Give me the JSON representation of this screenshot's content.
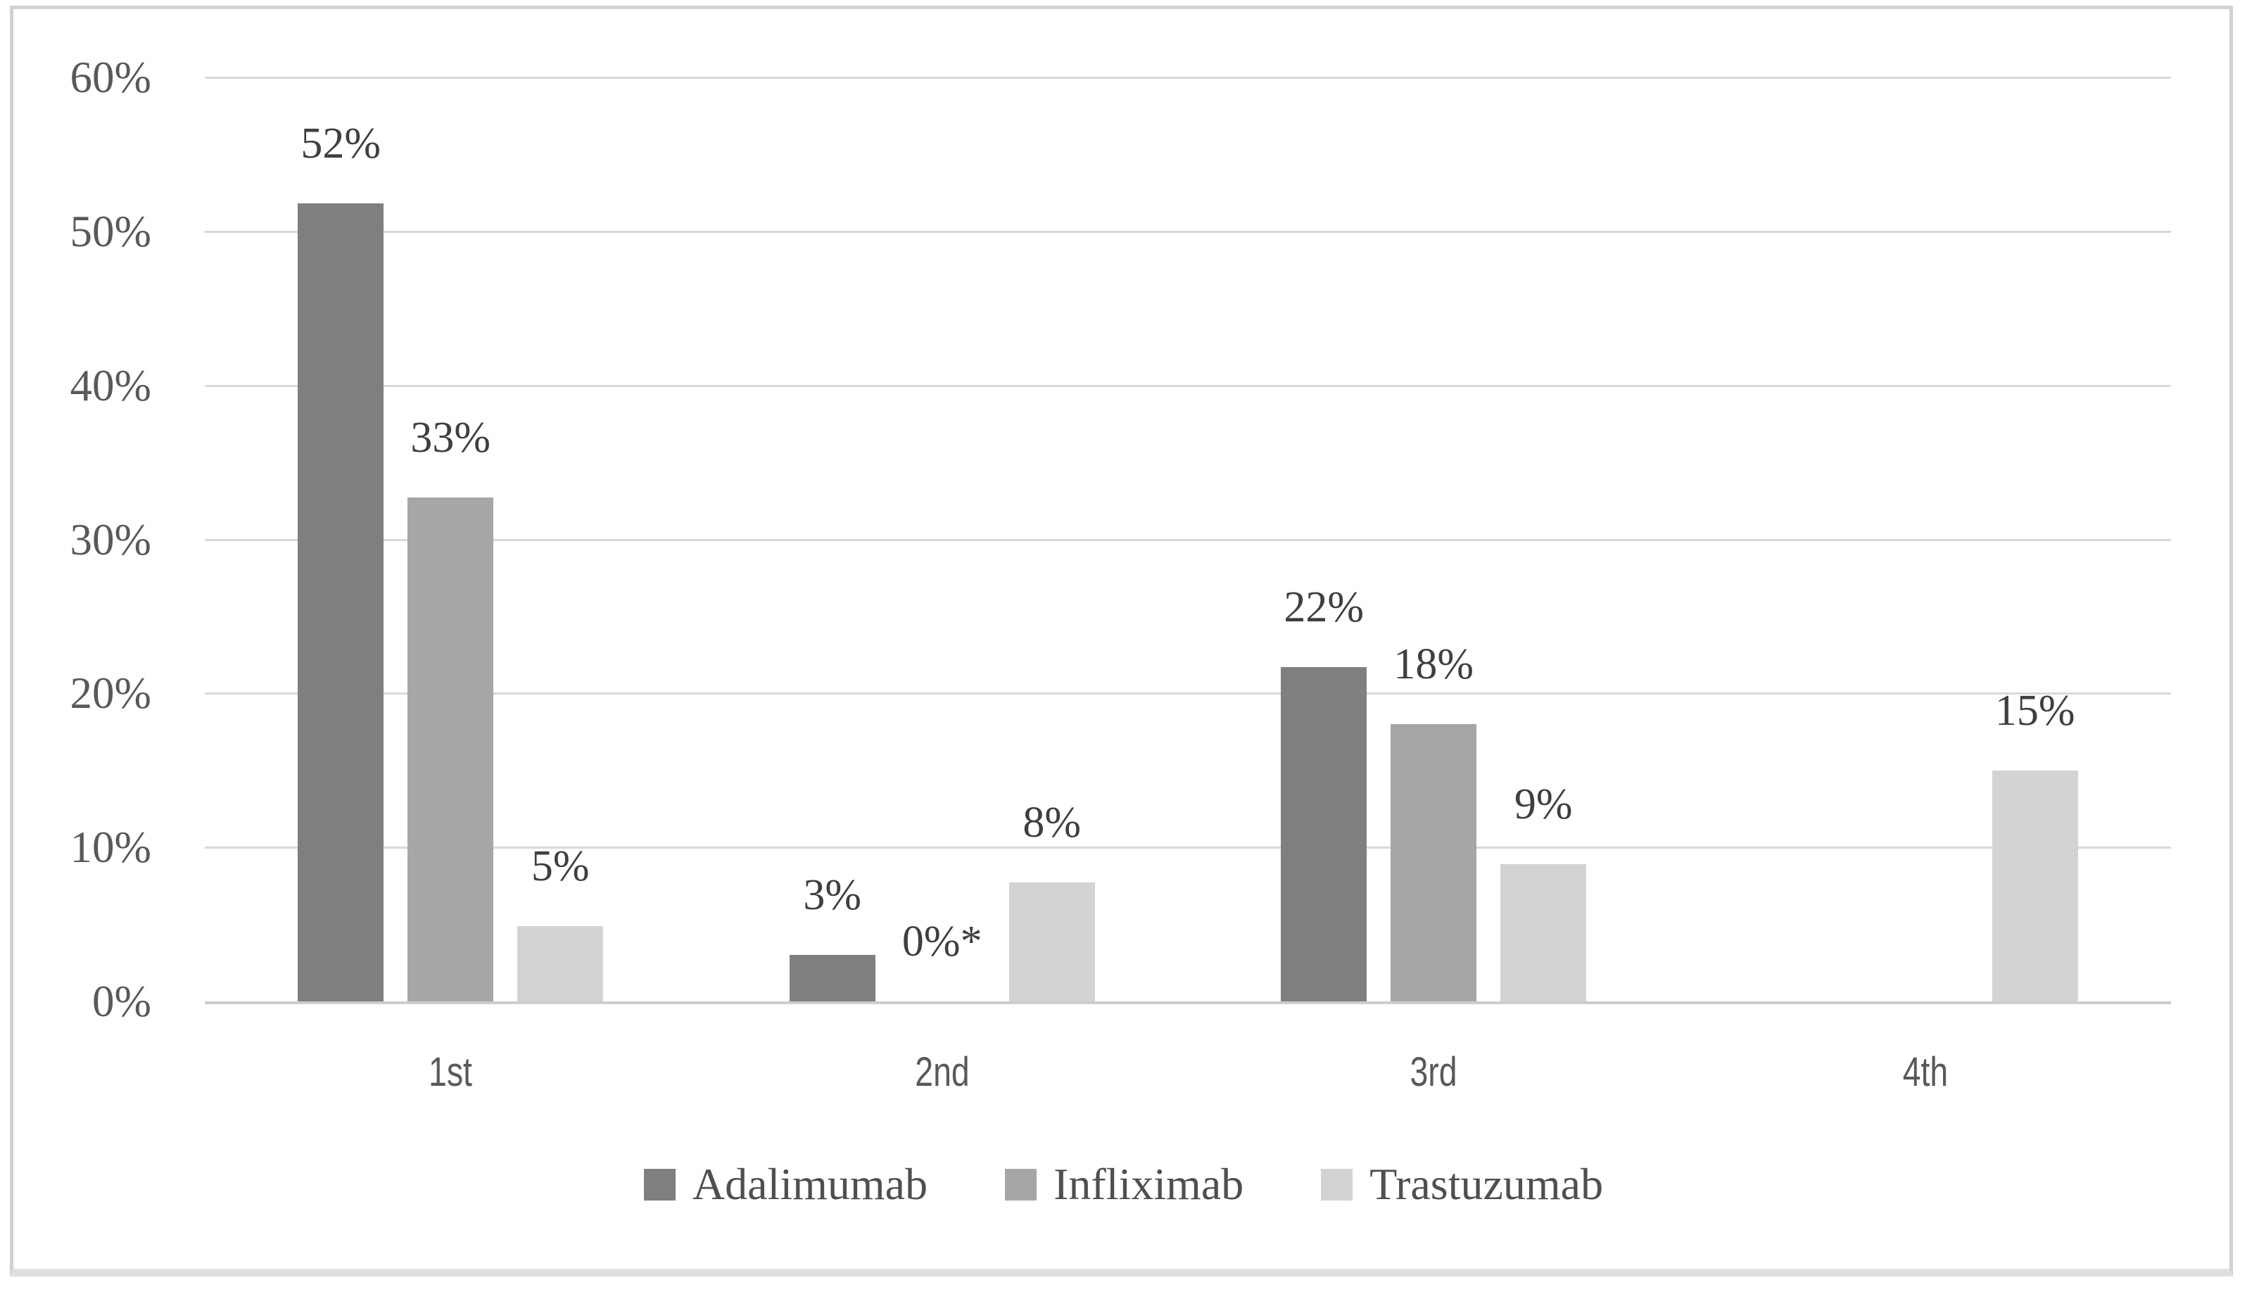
{
  "figure": {
    "background": "#ffffff",
    "border_color": "#d2d2d2"
  },
  "chart_data": {
    "type": "bar",
    "title": "",
    "xlabel": "",
    "ylabel": "",
    "categories": [
      "1st",
      "2nd",
      "3rd",
      "4th"
    ],
    "series": [
      {
        "name": "Adalimumab",
        "color": "#7f7f7f",
        "values": [
          52,
          3,
          22,
          null
        ],
        "data_labels": [
          "52%",
          "3%",
          "22%",
          ""
        ],
        "render_heights_pct": [
          51.8,
          3.0,
          21.7,
          null
        ]
      },
      {
        "name": "Infliximab",
        "color": "#a6a6a6",
        "values": [
          33,
          0,
          18,
          null
        ],
        "data_labels": [
          "33%",
          "0%*",
          "18%",
          ""
        ],
        "render_heights_pct": [
          32.7,
          0,
          18.0,
          null
        ]
      },
      {
        "name": "Trastuzumab",
        "color": "#d3d3d3",
        "values": [
          5,
          8,
          9,
          15
        ],
        "data_labels": [
          "5%",
          "8%",
          "9%",
          "15%"
        ],
        "render_heights_pct": [
          4.9,
          7.7,
          8.9,
          15.0
        ]
      }
    ],
    "ylim": [
      0,
      60
    ],
    "ytick_step": 10,
    "ytick_labels": [
      "0%",
      "10%",
      "20%",
      "30%",
      "40%",
      "50%",
      "60%"
    ],
    "grid": true,
    "legend_position": "bottom",
    "legend_entries": [
      "Adalimumab",
      "Infliximab",
      "Trastuzumab"
    ]
  },
  "styles": {
    "gridline_color": "#d9d9d9",
    "axisline_color": "#cdcdcd",
    "ytick_color": "#595959",
    "datalabel_color": "#3f3f3f",
    "catlabel_color": "#595959",
    "legend_text_color": "#4f4f4f"
  }
}
